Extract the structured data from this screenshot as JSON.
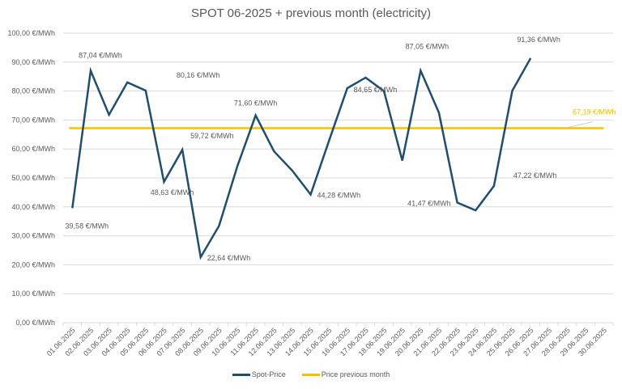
{
  "chart_data": {
    "type": "line",
    "title": "SPOT 06-2025 + previous month (electricity)",
    "xlabel": "",
    "ylabel": "",
    "ylim": [
      0,
      100
    ],
    "y_ticks": [
      "0,00 €/MWh",
      "10,00 €/MWh",
      "20,00 €/MWh",
      "30,00 €/MWh",
      "40,00 €/MWh",
      "50,00 €/MWh",
      "60,00 €/MWh",
      "70,00 €/MWh",
      "80,00 €/MWh",
      "90,00 €/MWh",
      "100,00 €/MWh"
    ],
    "y_tick_values": [
      0,
      10,
      20,
      30,
      40,
      50,
      60,
      70,
      80,
      90,
      100
    ],
    "grid": true,
    "legend_position": "bottom",
    "categories": [
      "01.06.2025",
      "02.06.2025",
      "03.06.2025",
      "04.06.2025",
      "05.06.2025",
      "06.06.2025",
      "07.06.2025",
      "08.06.2025",
      "09.06.2025",
      "10.06.2025",
      "11.06.2025",
      "12.06.2025",
      "13.06.2025",
      "14.06.2025",
      "15.06.2025",
      "16.06.2025",
      "17.06.2025",
      "18.06.2025",
      "19.06.2025",
      "20.06.2025",
      "21.06.2025",
      "22.06.2025",
      "23.06.2025",
      "24.06.2025",
      "25.06.2025",
      "26.06.2025",
      "27.06.2025",
      "28.06.2025",
      "29.06.2025",
      "30.06.2025"
    ],
    "series": [
      {
        "name": "Spot-Price",
        "color": "#1f4e6e",
        "values": [
          39.58,
          87.04,
          71.8,
          83.0,
          80.16,
          48.63,
          59.72,
          22.64,
          33.4,
          54.0,
          71.6,
          59.2,
          52.5,
          44.28,
          62.8,
          81.0,
          84.65,
          80.0,
          56.0,
          87.05,
          72.5,
          41.47,
          38.8,
          47.22,
          80.1,
          91.36,
          null,
          null,
          null,
          null
        ],
        "labels": [
          {
            "index": 0,
            "text": "39,58 €/MWh",
            "pos": "below"
          },
          {
            "index": 1,
            "text": "87,04 €/MWh",
            "pos": "above"
          },
          {
            "index": 4,
            "text": "80,16 €/MWh",
            "pos": "above-right"
          },
          {
            "index": 5,
            "text": "48,63 €/MWh",
            "pos": "below"
          },
          {
            "index": 6,
            "text": "59,72 €/MWh",
            "pos": "above-right"
          },
          {
            "index": 7,
            "text": "22,64 €/MWh",
            "pos": "right"
          },
          {
            "index": 10,
            "text": "71,60 €/MWh",
            "pos": "above"
          },
          {
            "index": 13,
            "text": "44,28 €/MWh",
            "pos": "right"
          },
          {
            "index": 16,
            "text": "84,65 €/MWh",
            "pos": "below"
          },
          {
            "index": 19,
            "text": "87,05 €/MWh",
            "pos": "above"
          },
          {
            "index": 21,
            "text": "41,47 €/MWh",
            "pos": "left"
          },
          {
            "index": 23,
            "text": "47,22 €/MWh",
            "pos": "above-right"
          },
          {
            "index": 25,
            "text": "91,36 €/MWh",
            "pos": "above"
          }
        ]
      },
      {
        "name": "Price previous month",
        "color": "#f5c000",
        "constant": 67.19,
        "label": "67,19 €/MWh"
      }
    ]
  }
}
